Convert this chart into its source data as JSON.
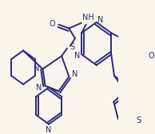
{
  "bg_color": "#faf5ec",
  "line_color": "#2b2b7a",
  "line_width": 1.4,
  "font_size": 7.0,
  "figsize": [
    1.94,
    1.68
  ],
  "dpi": 100,
  "xlim": [
    0,
    194
  ],
  "ylim": [
    0,
    168
  ]
}
